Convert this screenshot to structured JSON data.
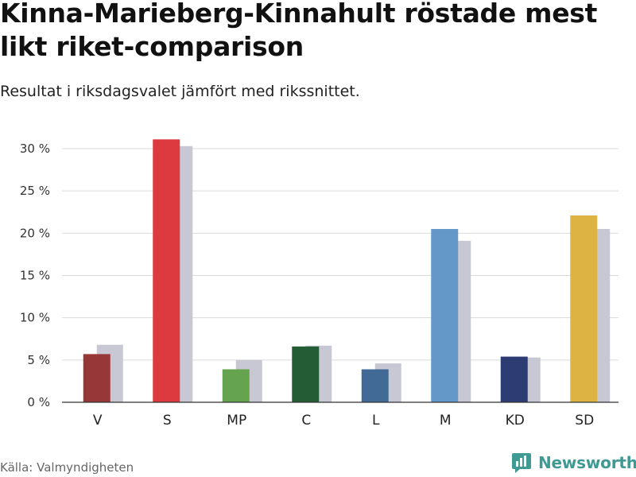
{
  "header": {
    "title": "Kinna-Marieberg-Kinnahult röstade mest likt riket-comparison",
    "subtitle": "Resultat i riksdagsvalet jämfört med rikssnittet."
  },
  "footer": {
    "source": "Källa: Valmyndigheten",
    "brand": "Newsworthy",
    "brand_color": "#3e9a93"
  },
  "chart_data": {
    "type": "bar",
    "title": "Kinna-Marieberg-Kinnahult röstade mest likt riket-comparison",
    "subtitle": "Resultat i riksdagsvalet jämfört med rikssnittet.",
    "xlabel": "",
    "ylabel": "",
    "ylim": [
      0,
      30
    ],
    "yticks": [
      0,
      5,
      10,
      15,
      20,
      25,
      30
    ],
    "ytick_labels": [
      "0 %",
      "5 %",
      "10 %",
      "15 %",
      "20 %",
      "25 %",
      "30 %"
    ],
    "grid": true,
    "categories": [
      "V",
      "S",
      "MP",
      "C",
      "L",
      "M",
      "KD",
      "SD"
    ],
    "series": [
      {
        "name": "Kinna-Marieberg-Kinnahult",
        "values": [
          5.7,
          31.1,
          3.9,
          6.6,
          3.9,
          20.5,
          5.4,
          22.1
        ],
        "colors": [
          "#983737",
          "#dc3a3f",
          "#66a34e",
          "#245c35",
          "#416a97",
          "#6498c8",
          "#2d3c73",
          "#ddb443"
        ]
      },
      {
        "name": "Riket",
        "values": [
          6.8,
          30.3,
          5.0,
          6.7,
          4.6,
          19.1,
          5.3,
          20.5
        ],
        "color": "#c8c8d4"
      }
    ]
  }
}
